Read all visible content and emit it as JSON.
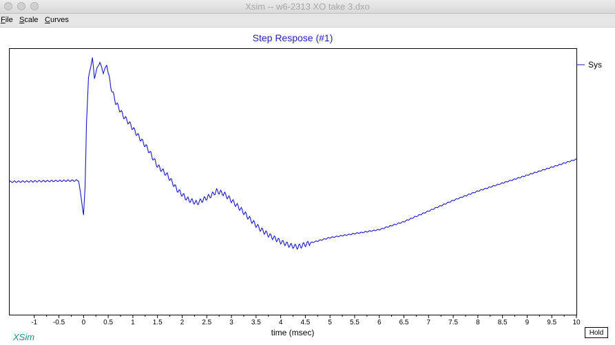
{
  "window": {
    "title": "Xsim -- w6-2313 XO take 3.dxo"
  },
  "menu": [
    {
      "key": "F",
      "rest": "ile"
    },
    {
      "key": "S",
      "rest": "cale"
    },
    {
      "key": "C",
      "rest": "urves"
    }
  ],
  "brand": "XSim",
  "hold_label": "Hold",
  "chart_data": {
    "type": "line",
    "title": "Step Respose (#1)",
    "xlabel": "time (msec)",
    "ylabel": "",
    "xlim": [
      -1.5,
      10
    ],
    "ylim": [
      -1,
      1
    ],
    "grid": false,
    "legend": "right",
    "x_ticks": [
      "-1",
      "-0.5",
      "0",
      "0.5",
      "1",
      "1.5",
      "2",
      "2.5",
      "3",
      "3.5",
      "4",
      "4.5",
      "5",
      "5.5",
      "6",
      "6.5",
      "7",
      "7.5",
      "8",
      "8.5",
      "9",
      "9.5",
      "10"
    ],
    "series": [
      {
        "name": "Sys",
        "color": "#1515c8",
        "x": [
          -1.5,
          -0.1,
          -0.05,
          0.0,
          0.03,
          0.06,
          0.1,
          0.14,
          0.18,
          0.22,
          0.27,
          0.33,
          0.4,
          0.47,
          0.55,
          0.65,
          0.8,
          0.95,
          1.1,
          1.3,
          1.5,
          1.7,
          1.9,
          2.1,
          2.3,
          2.45,
          2.6,
          2.7,
          2.85,
          3.0,
          3.2,
          3.4,
          3.6,
          3.8,
          4.0,
          4.2,
          4.35,
          4.5,
          4.7,
          5.0,
          5.5,
          6.0,
          6.5,
          7.0,
          7.5,
          8.0,
          8.5,
          9.0,
          9.5,
          10.0
        ],
        "y": [
          0.0,
          0.01,
          -0.12,
          -0.25,
          -0.05,
          0.45,
          0.78,
          0.86,
          0.93,
          0.78,
          0.85,
          0.9,
          0.82,
          0.88,
          0.72,
          0.6,
          0.5,
          0.43,
          0.35,
          0.25,
          0.12,
          0.05,
          -0.06,
          -0.13,
          -0.16,
          -0.13,
          -0.1,
          -0.07,
          -0.09,
          -0.14,
          -0.21,
          -0.29,
          -0.36,
          -0.41,
          -0.45,
          -0.48,
          -0.49,
          -0.47,
          -0.45,
          -0.42,
          -0.39,
          -0.36,
          -0.3,
          -0.22,
          -0.14,
          -0.07,
          -0.01,
          0.05,
          0.11,
          0.17
        ]
      }
    ]
  }
}
